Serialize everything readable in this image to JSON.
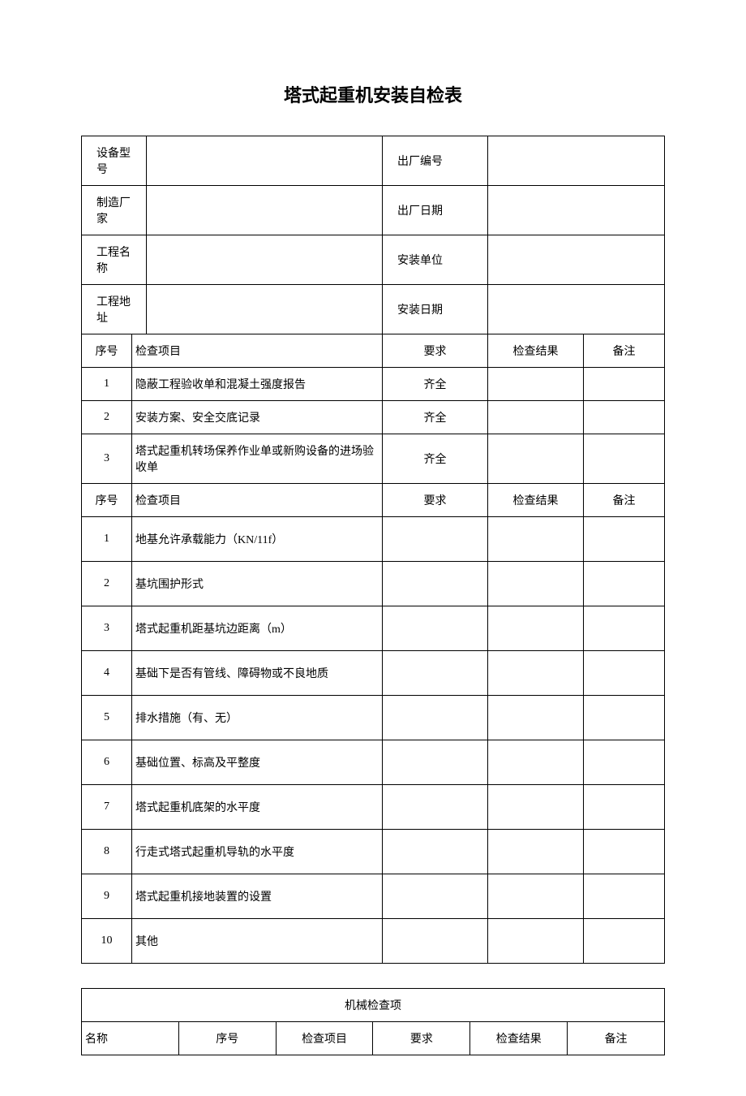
{
  "title": "塔式起重机安装自检表",
  "colors": {
    "background": "#ffffff",
    "border": "#000000",
    "text": "#000000"
  },
  "typography": {
    "title_fontsize": 22,
    "body_fontsize": 14,
    "title_font": "SimHei",
    "body_font": "SimSun"
  },
  "info": {
    "labels": {
      "device_model": "设备型号",
      "factory_number": "出厂编号",
      "manufacturer": "制造厂家",
      "factory_date": "出厂日期",
      "project_name": "工程名称",
      "install_unit": "安装单位",
      "project_address": "工程地址",
      "install_date": "安装日期"
    },
    "values": {
      "device_model": "",
      "factory_number": "",
      "manufacturer": "",
      "factory_date": "",
      "project_name": "",
      "install_unit": "",
      "project_address": "",
      "install_date": ""
    }
  },
  "headers": {
    "seq": "序号",
    "item": "检查项目",
    "requirement": "要求",
    "result": "检查结果",
    "remark": "备注"
  },
  "section1_rows": [
    {
      "seq": "1",
      "item": "隐蔽工程验收单和混凝土强度报告",
      "req": "齐全",
      "res": "",
      "note": ""
    },
    {
      "seq": "2",
      "item": "安装方案、安全交底记录",
      "req": "齐全",
      "res": "",
      "note": ""
    },
    {
      "seq": "3",
      "item": "塔式起重机转场保养作业单或新购设备的进场验收单",
      "req": "齐全",
      "res": "",
      "note": ""
    }
  ],
  "section2_rows": [
    {
      "seq": "1",
      "item": "地基允许承载能力（KN/11f）",
      "req": "",
      "res": "",
      "note": ""
    },
    {
      "seq": "2",
      "item": "基坑围护形式",
      "req": "",
      "res": "",
      "note": ""
    },
    {
      "seq": "3",
      "item": "塔式起重机距基坑边距离（m）",
      "req": "",
      "res": "",
      "note": ""
    },
    {
      "seq": "4",
      "item": "基础下是否有管线、障碍物或不良地质",
      "req": "",
      "res": "",
      "note": ""
    },
    {
      "seq": "5",
      "item": "排水措施（有、无）",
      "req": "",
      "res": "",
      "note": ""
    },
    {
      "seq": "6",
      "item": "基础位置、标高及平整度",
      "req": "",
      "res": "",
      "note": ""
    },
    {
      "seq": "7",
      "item": "塔式起重机底架的水平度",
      "req": "",
      "res": "",
      "note": ""
    },
    {
      "seq": "8",
      "item": "行走式塔式起重机导轨的水平度",
      "req": "",
      "res": "",
      "note": ""
    },
    {
      "seq": "9",
      "item": "塔式起重机接地装置的设置",
      "req": "",
      "res": "",
      "note": ""
    },
    {
      "seq": "10",
      "item": "其他",
      "req": "",
      "res": "",
      "note": ""
    }
  ],
  "table2": {
    "section_title": "机械检查项",
    "headers": {
      "name": "名称",
      "seq": "序号",
      "item": "检查项目",
      "requirement": "要求",
      "result": "检查结果",
      "remark": "备注"
    }
  }
}
